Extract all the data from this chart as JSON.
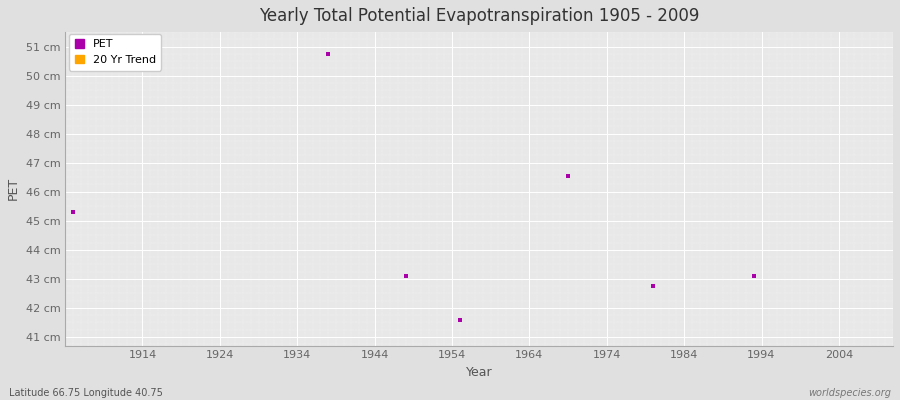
{
  "title": "Yearly Total Potential Evapotranspiration 1905 - 2009",
  "xlabel": "Year",
  "ylabel": "PET",
  "subtitle_left": "Latitude 66.75 Longitude 40.75",
  "subtitle_right": "worldspecies.org",
  "xlim": [
    1904,
    2011
  ],
  "ylim": [
    40.7,
    51.5
  ],
  "yticks": [
    41,
    42,
    43,
    44,
    45,
    46,
    47,
    48,
    49,
    50,
    51
  ],
  "ytick_labels": [
    "41 cm",
    "42 cm",
    "43 cm",
    "44 cm",
    "45 cm",
    "46 cm",
    "47 cm",
    "48 cm",
    "49 cm",
    "50 cm",
    "51 cm"
  ],
  "xticks": [
    1914,
    1924,
    1934,
    1944,
    1954,
    1964,
    1974,
    1984,
    1994,
    2004
  ],
  "data_points": [
    {
      "year": 1905,
      "value": 45.3
    },
    {
      "year": 1938,
      "value": 50.75
    },
    {
      "year": 1948,
      "value": 43.1
    },
    {
      "year": 1955,
      "value": 41.6
    },
    {
      "year": 1969,
      "value": 46.55
    },
    {
      "year": 1980,
      "value": 42.75
    },
    {
      "year": 1993,
      "value": 43.1
    }
  ],
  "pet_color": "#aa00aa",
  "trend_color": "#FFA500",
  "bg_color": "#e0e0e0",
  "plot_bg_color": "#e8e8e8",
  "grid_color_major": "#ffffff",
  "grid_color_minor": "#d8d8d8",
  "marker_size": 2.5,
  "legend_entries": [
    "PET",
    "20 Yr Trend"
  ],
  "title_fontsize": 12,
  "tick_fontsize": 8
}
